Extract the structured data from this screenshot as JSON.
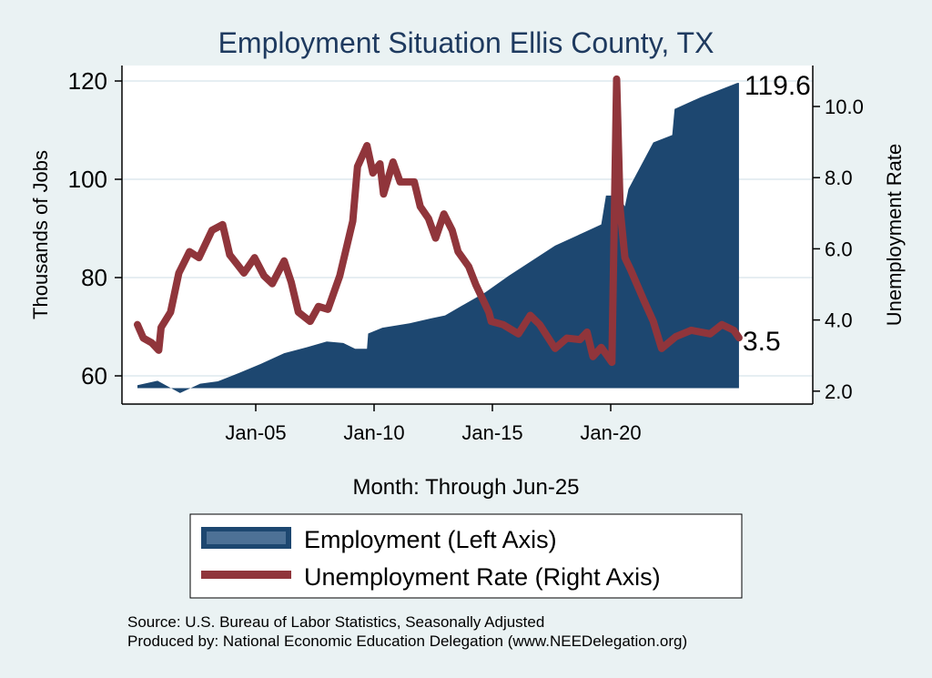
{
  "chart_data": {
    "type": "line",
    "title": "Employment Situation Ellis  County, TX",
    "xlabel": "Month: Through Jun-25",
    "ylabel_left": "Thousands of Jobs",
    "ylabel_right": "Unemployment Rate",
    "x_ticks": [
      {
        "label": "Jan-05",
        "x": 2005
      },
      {
        "label": "Jan-10",
        "x": 2010
      },
      {
        "label": "Jan-15",
        "x": 2015
      },
      {
        "label": "Jan-20",
        "x": 2020
      }
    ],
    "y_left_ticks": [
      "60",
      "80",
      "100",
      "120"
    ],
    "y_right_ticks": [
      "2.0",
      "4.0",
      "6.0",
      "8.0",
      "10.0"
    ],
    "y_left_range": [
      57.5,
      120
    ],
    "y_right_range": [
      2.0,
      10.0
    ],
    "grid": true,
    "end_labels": {
      "employment": "119.6",
      "unemployment": "3.5"
    },
    "legend": {
      "placement": "bottom",
      "items": [
        "Employment (Left Axis)",
        "Unemployment Rate (Right Axis)"
      ]
    },
    "colors": {
      "employment": "#1d4770",
      "unemployment": "#90353b",
      "legend_fill": "#4d7196"
    },
    "series": [
      {
        "name": "Employment",
        "axis": "left",
        "base": 57.5,
        "x": [
          2000.0,
          2000.85,
          2001.8,
          2002.65,
          2003.4,
          2004.3,
          2005.2,
          2006.2,
          2007.15,
          2008.0,
          2008.7,
          2009.2,
          2009.7,
          2009.75,
          2010.35,
          2011.5,
          2012.4,
          2013.0,
          2013.9,
          2014.7,
          2015.7,
          2017.65,
          2019.6,
          2019.8,
          2020.3,
          2020.6,
          2020.75,
          2021.8,
          2022.6,
          2022.7,
          2023.8,
          2025.35,
          2025.42
        ],
        "y": [
          58.1,
          59.0,
          56.5,
          58.4,
          58.9,
          60.6,
          62.4,
          64.6,
          65.8,
          67.0,
          66.7,
          65.5,
          65.5,
          68.6,
          69.8,
          70.7,
          71.7,
          72.3,
          74.8,
          77.0,
          80.4,
          86.5,
          90.8,
          96.7,
          96.7,
          94.5,
          98.0,
          107.5,
          109.0,
          114.3,
          116.7,
          119.6,
          119.6
        ]
      },
      {
        "name": "Unemployment Rate",
        "axis": "right",
        "x": [
          2000.0,
          2000.25,
          2000.6,
          2000.9,
          2001.0,
          2001.4,
          2001.75,
          2002.2,
          2002.6,
          2003.15,
          2003.6,
          2003.9,
          2004.2,
          2004.5,
          2004.95,
          2005.35,
          2005.7,
          2006.2,
          2006.5,
          2006.8,
          2007.3,
          2007.65,
          2008.05,
          2008.55,
          2009.1,
          2009.3,
          2009.7,
          2009.95,
          2010.25,
          2010.4,
          2010.8,
          2011.1,
          2011.7,
          2011.95,
          2012.3,
          2012.6,
          2012.95,
          2013.3,
          2013.55,
          2014.0,
          2014.3,
          2014.85,
          2014.95,
          2015.45,
          2016.1,
          2016.6,
          2017.0,
          2017.65,
          2018.15,
          2018.7,
          2019.0,
          2019.25,
          2019.6,
          2020.05,
          2020.25,
          2020.4,
          2020.6,
          2020.85,
          2021.4,
          2021.8,
          2022.15,
          2022.75,
          2023.4,
          2024.2,
          2024.7,
          2025.2,
          2025.42
        ],
        "y": [
          3.87,
          3.49,
          3.36,
          3.15,
          3.79,
          4.22,
          5.32,
          5.92,
          5.75,
          6.52,
          6.68,
          5.83,
          5.58,
          5.32,
          5.75,
          5.24,
          5.02,
          5.66,
          5.06,
          4.22,
          3.96,
          4.38,
          4.3,
          5.24,
          6.78,
          8.31,
          8.9,
          8.13,
          8.39,
          7.54,
          8.44,
          7.88,
          7.88,
          7.19,
          6.85,
          6.3,
          6.98,
          6.52,
          5.92,
          5.5,
          4.99,
          4.22,
          3.96,
          3.87,
          3.61,
          4.13,
          3.87,
          3.2,
          3.49,
          3.45,
          3.66,
          2.97,
          3.23,
          2.81,
          10.77,
          7.11,
          5.75,
          5.4,
          4.55,
          3.96,
          3.2,
          3.53,
          3.71,
          3.61,
          3.87,
          3.71,
          3.5
        ]
      }
    ]
  },
  "footer": {
    "source": "Source: U.S. Bureau of Labor Statistics, Seasonally Adjusted",
    "produced": "Produced by: National Economic Education Delegation (www.NEEDelegation.org)"
  }
}
